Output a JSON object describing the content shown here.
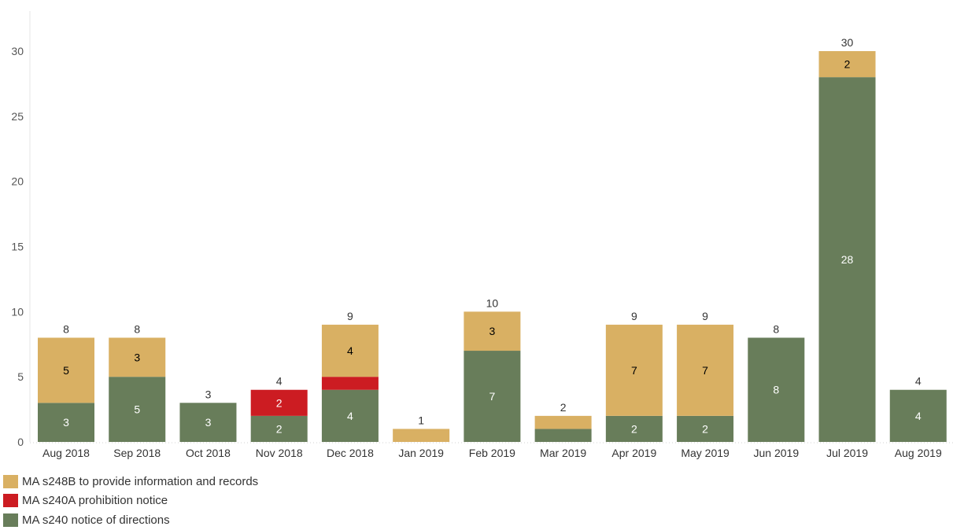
{
  "chart_data": {
    "type": "bar",
    "stacked": true,
    "categories": [
      "Aug 2018",
      "Sep 2018",
      "Oct 2018",
      "Nov 2018",
      "Dec 2018",
      "Jan 2019",
      "Feb 2019",
      "Mar 2019",
      "Apr 2019",
      "May 2019",
      "Jun 2019",
      "Jul 2019",
      "Aug 2019"
    ],
    "series": [
      {
        "name": "MA s240 notice of directions",
        "color": "#687d5a",
        "label_color": "#ffffff",
        "values": [
          3,
          5,
          3,
          2,
          4,
          0,
          7,
          1,
          2,
          2,
          8,
          28,
          4
        ],
        "show_labels": [
          true,
          true,
          true,
          true,
          true,
          false,
          true,
          false,
          true,
          true,
          true,
          true,
          true
        ]
      },
      {
        "name": "MA s240A prohibition notice",
        "color": "#cc1c22",
        "label_color": "#ffffff",
        "values": [
          0,
          0,
          0,
          2,
          1,
          0,
          0,
          0,
          0,
          0,
          0,
          0,
          0
        ],
        "show_labels": [
          false,
          false,
          false,
          true,
          false,
          false,
          false,
          false,
          false,
          false,
          false,
          false,
          false
        ]
      },
      {
        "name": "MA s248B to provide information and records",
        "color": "#d9b063",
        "label_color": "#000000",
        "values": [
          5,
          3,
          0,
          0,
          4,
          1,
          3,
          1,
          7,
          7,
          0,
          2,
          0
        ],
        "show_labels": [
          true,
          true,
          false,
          false,
          true,
          false,
          true,
          false,
          true,
          true,
          false,
          true,
          false
        ]
      }
    ],
    "totals": [
      8,
      8,
      3,
      4,
      9,
      1,
      10,
      2,
      9,
      9,
      8,
      30,
      4
    ],
    "title": "",
    "xlabel": "",
    "ylabel": "",
    "yticks": [
      0,
      5,
      10,
      15,
      20,
      25,
      30
    ],
    "ylim": [
      0,
      30
    ],
    "grid": false,
    "legend_position": "bottom-left",
    "legend_order": [
      "MA s248B to provide information and records",
      "MA s240A prohibition notice",
      "MA s240 notice of directions"
    ]
  }
}
